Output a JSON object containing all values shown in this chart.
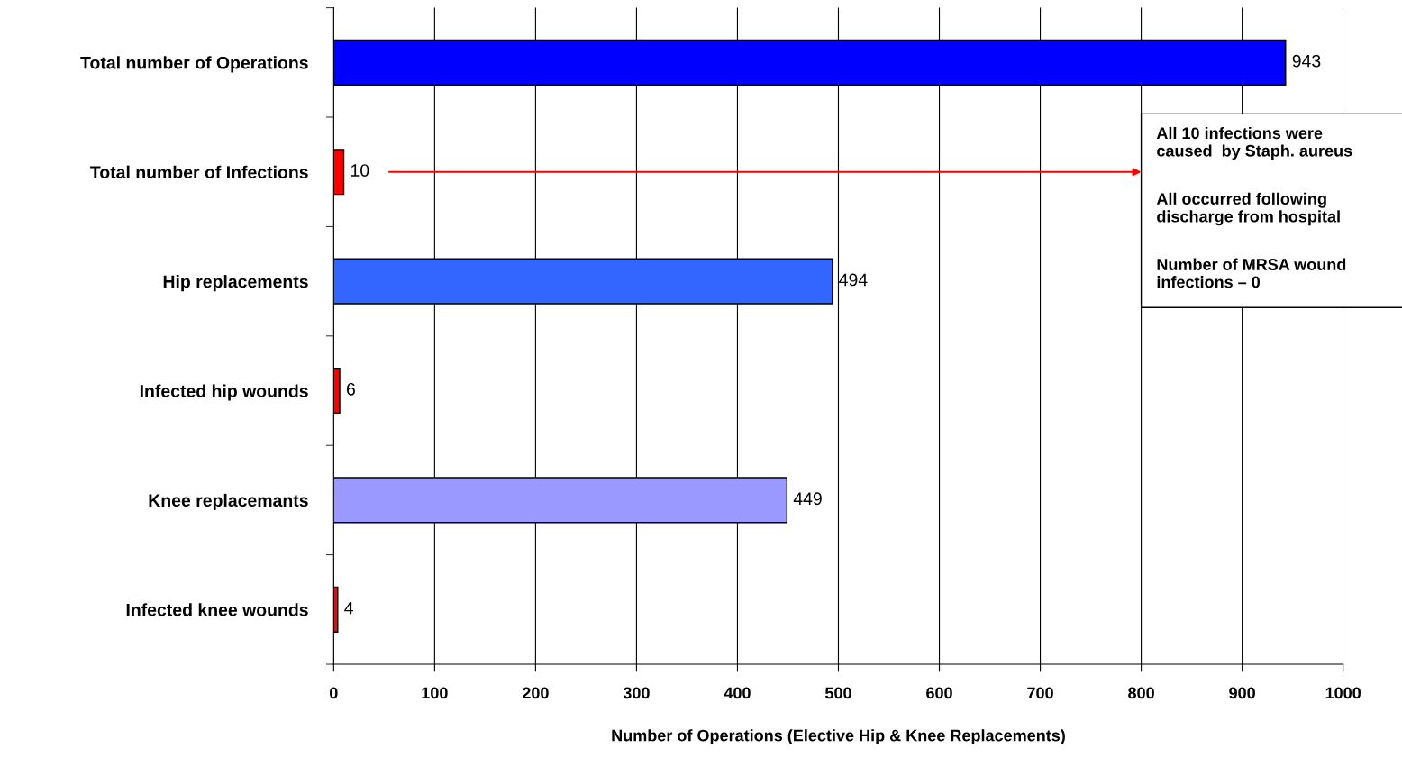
{
  "chart_data": {
    "type": "bar",
    "orientation": "horizontal",
    "xlabel": "Number of Operations (Elective Hip & Knee Replacements)",
    "categories": [
      "Total number of Operations",
      "Total number of Infections",
      "Hip replacements",
      "Infected hip wounds",
      "Knee replacemants",
      "Infected knee wounds"
    ],
    "values": [
      943,
      10,
      494,
      6,
      449,
      4
    ],
    "colors": [
      "#0000ff",
      "#ff0000",
      "#3366ff",
      "#ff0000",
      "#9999ff",
      "#ff0000"
    ],
    "xlim": [
      0,
      1000
    ],
    "xticks": [
      0,
      100,
      200,
      300,
      400,
      500,
      600,
      700,
      800,
      900,
      1000
    ],
    "grid": "x",
    "data_labels": true,
    "annotations": [
      "All 10 infections were\ncaused  by Staph. aureus",
      "All occurred following\ndischarge from hospital",
      "Number of MRSA wound\ninfections – 0"
    ]
  }
}
